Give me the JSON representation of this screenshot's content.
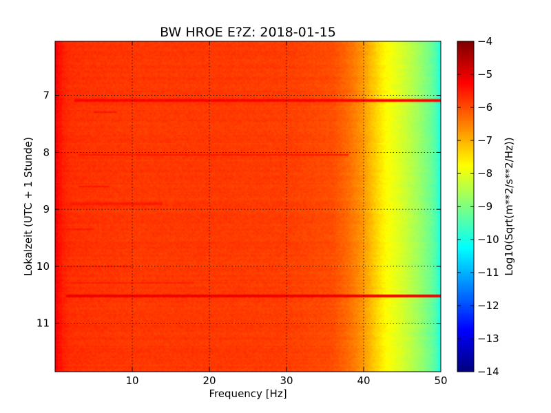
{
  "chart_data": {
    "type": "heatmap",
    "title": "BW HROE E?Z: 2018-01-15",
    "xlabel": "Frequency [Hz]",
    "ylabel": "Lokalzeit (UTC + 1 Stunde)",
    "colorbar_label": "Log10(Sqrt(m**2/s**2/Hz))",
    "xlim": [
      0,
      50
    ],
    "ylim": [
      6.05,
      11.85
    ],
    "y_inverted": true,
    "clim": [
      -14,
      -4
    ],
    "colormap": "jet",
    "grid": true,
    "x_ticks": [
      10,
      20,
      30,
      40,
      50
    ],
    "y_ticks": [
      7,
      8,
      9,
      10,
      11
    ],
    "colorbar_ticks": [
      -4,
      -5,
      -6,
      -7,
      -8,
      -9,
      -10,
      -11,
      -12,
      -13,
      -14
    ],
    "frequency_profile": {
      "frequency_hz": [
        0,
        0.3,
        1,
        2,
        5,
        10,
        20,
        30,
        36,
        38,
        40,
        41,
        42,
        43,
        44,
        45,
        46,
        47,
        48,
        49,
        49.7,
        50
      ],
      "log10_value": [
        -5.2,
        -5.3,
        -5.55,
        -5.7,
        -5.75,
        -5.8,
        -5.8,
        -5.85,
        -6.0,
        -6.3,
        -6.75,
        -7.1,
        -7.45,
        -7.75,
        -7.95,
        -8.15,
        -8.4,
        -8.65,
        -8.95,
        -9.3,
        -9.7,
        -10.2
      ]
    },
    "bands": [
      {
        "time": 7.09,
        "f_start": 2.5,
        "f_end": 50,
        "log10_value": -5.25
      },
      {
        "time": 8.05,
        "f_start": 3,
        "f_end": 38,
        "log10_value": -5.45
      },
      {
        "time": 10.52,
        "f_start": 1.5,
        "f_end": 50,
        "log10_value": -5.1
      },
      {
        "time": 7.3,
        "f_start": 5,
        "f_end": 8,
        "log10_value": -5.4
      },
      {
        "time": 8.6,
        "f_start": 3,
        "f_end": 7,
        "log10_value": -5.4
      },
      {
        "time": 8.9,
        "f_start": 2,
        "f_end": 14,
        "log10_value": -5.5
      },
      {
        "time": 9.35,
        "f_start": 0.5,
        "f_end": 5,
        "log10_value": -5.45
      },
      {
        "time": 10.0,
        "f_start": 1.5,
        "f_end": 10,
        "log10_value": -5.5
      },
      {
        "time": 10.3,
        "f_start": 2,
        "f_end": 18,
        "log10_value": -5.5
      }
    ]
  }
}
